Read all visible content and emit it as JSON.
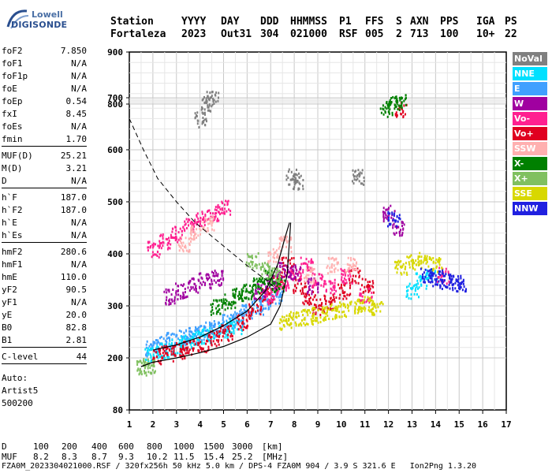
{
  "logo": {
    "line1": "Lowell",
    "line2": "DIGISONDE"
  },
  "header": {
    "labels": [
      "Station",
      "YYYY",
      "DAY",
      "DDD",
      "HHMMSS",
      "P1",
      "FFS",
      "S",
      "AXN",
      "PPS",
      "IGA",
      "PS"
    ],
    "values": [
      "Fortaleza",
      "2023",
      "Out31",
      "304",
      "021000",
      "RSF",
      "005",
      "2",
      "713",
      "100",
      "10+",
      "22"
    ]
  },
  "params": {
    "groups": [
      [
        {
          "label": "foF2",
          "value": "7.850"
        },
        {
          "label": "foF1",
          "value": "N/A"
        },
        {
          "label": "foF1p",
          "value": "N/A"
        },
        {
          "label": "foE",
          "value": "N/A"
        },
        {
          "label": "foEp",
          "value": "0.54"
        },
        {
          "label": "fxI",
          "value": "8.45"
        },
        {
          "label": "foEs",
          "value": "N/A"
        },
        {
          "label": "fmin",
          "value": "1.70"
        }
      ],
      [
        {
          "label": "MUF(D)",
          "value": "25.21"
        },
        {
          "label": "M(D)",
          "value": "3.21"
        },
        {
          "label": "D",
          "value": "N/A"
        }
      ],
      [
        {
          "label": "h`F",
          "value": "187.0"
        },
        {
          "label": "h`F2",
          "value": "187.0"
        },
        {
          "label": "h`E",
          "value": "N/A"
        },
        {
          "label": "h`Es",
          "value": "N/A"
        }
      ],
      [
        {
          "label": "hmF2",
          "value": "280.6"
        },
        {
          "label": "hmF1",
          "value": "N/A"
        },
        {
          "label": "hmE",
          "value": "110.0"
        },
        {
          "label": "yF2",
          "value": "90.5"
        },
        {
          "label": "yF1",
          "value": "N/A"
        },
        {
          "label": "yE",
          "value": "20.0"
        },
        {
          "label": "B0",
          "value": "82.8"
        },
        {
          "label": "B1",
          "value": "2.81"
        }
      ],
      [
        {
          "label": "C-level",
          "value": "44"
        }
      ]
    ],
    "footer": [
      "Auto:",
      "Artist5",
      "500200"
    ]
  },
  "legend": [
    {
      "label": "NoVal",
      "color": "#808080"
    },
    {
      "label": "NNE",
      "color": "#00e0ff"
    },
    {
      "label": "E",
      "color": "#40a0ff"
    },
    {
      "label": "W",
      "color": "#a000a0"
    },
    {
      "label": "Vo-",
      "color": "#ff2090"
    },
    {
      "label": "Vo+",
      "color": "#e00020"
    },
    {
      "label": "SSW",
      "color": "#ffb0b0"
    },
    {
      "label": "X-",
      "color": "#008000"
    },
    {
      "label": "X+",
      "color": "#80c060"
    },
    {
      "label": "SSE",
      "color": "#d8d800"
    },
    {
      "label": "NNW",
      "color": "#2020e0"
    }
  ],
  "chart_data": {
    "type": "scatter",
    "x_ticks": [
      "1",
      "2",
      "3",
      "4",
      "5",
      "6",
      "7",
      "8",
      "9",
      "10",
      "11",
      "12",
      "13",
      "14",
      "15",
      "16",
      "17"
    ],
    "y_ticks": [
      "80",
      "200",
      "300",
      "400",
      "500",
      "600",
      "700",
      "800",
      "900"
    ],
    "xlim": [
      1,
      17
    ],
    "ylim_label_range": [
      80,
      900
    ],
    "grid": true,
    "series": [
      {
        "color": "#40a0ff",
        "points": [
          [
            1.9,
            220
          ],
          [
            2.3,
            228
          ],
          [
            2.8,
            235
          ],
          [
            3.2,
            240
          ],
          [
            3.6,
            245
          ],
          [
            4.0,
            250
          ],
          [
            4.4,
            255
          ],
          [
            4.8,
            262
          ],
          [
            5.2,
            270
          ],
          [
            5.6,
            280
          ],
          [
            6.0,
            292
          ],
          [
            6.4,
            300
          ],
          [
            6.8,
            310
          ],
          [
            7.2,
            320
          ]
        ]
      },
      {
        "color": "#00e0ff",
        "points": [
          [
            1.9,
            210
          ],
          [
            2.4,
            215
          ],
          [
            3.0,
            222
          ],
          [
            3.4,
            230
          ],
          [
            3.9,
            238
          ],
          [
            4.3,
            244
          ],
          [
            5.0,
            255
          ],
          [
            5.5,
            262
          ],
          [
            13.0,
            330
          ],
          [
            13.4,
            350
          ],
          [
            13.8,
            360
          ]
        ]
      },
      {
        "color": "#e00020",
        "points": [
          [
            2.2,
            205
          ],
          [
            2.6,
            210
          ],
          [
            3.1,
            215
          ],
          [
            3.5,
            220
          ],
          [
            4.1,
            228
          ],
          [
            4.6,
            240
          ],
          [
            5.1,
            250
          ],
          [
            5.8,
            270
          ],
          [
            6.3,
            290
          ],
          [
            6.8,
            320
          ],
          [
            7.3,
            350
          ],
          [
            7.7,
            380
          ],
          [
            8.2,
            340
          ],
          [
            8.6,
            320
          ],
          [
            9.0,
            300
          ],
          [
            9.5,
            310
          ],
          [
            10.1,
            330
          ],
          [
            10.5,
            360
          ],
          [
            11.1,
            340
          ],
          [
            12.5,
            680
          ]
        ]
      },
      {
        "color": "#ff2090",
        "points": [
          [
            2.0,
            410
          ],
          [
            2.5,
            425
          ],
          [
            3.0,
            440
          ],
          [
            3.5,
            455
          ],
          [
            4.0,
            470
          ],
          [
            4.5,
            480
          ],
          [
            5.0,
            490
          ],
          [
            7.0,
            320
          ],
          [
            7.5,
            340
          ],
          [
            8.0,
            360
          ],
          [
            8.5,
            380
          ],
          [
            9.0,
            350
          ],
          [
            9.5,
            340
          ],
          [
            10.2,
            360
          ],
          [
            11.0,
            320
          ],
          [
            14.3,
            360
          ]
        ]
      },
      {
        "color": "#a000a0",
        "points": [
          [
            2.7,
            320
          ],
          [
            3.2,
            330
          ],
          [
            3.7,
            340
          ],
          [
            4.2,
            350
          ],
          [
            4.7,
            355
          ],
          [
            6.5,
            330
          ],
          [
            7.0,
            350
          ],
          [
            7.5,
            370
          ],
          [
            8.0,
            365
          ],
          [
            8.8,
            340
          ],
          [
            12.0,
            480
          ],
          [
            12.4,
            450
          ]
        ]
      },
      {
        "color": "#008000",
        "points": [
          [
            4.7,
            300
          ],
          [
            5.2,
            310
          ],
          [
            5.6,
            320
          ],
          [
            6.0,
            330
          ],
          [
            6.4,
            340
          ],
          [
            6.8,
            355
          ],
          [
            7.3,
            340
          ],
          [
            11.9,
            680
          ],
          [
            12.2,
            690
          ],
          [
            12.5,
            720
          ]
        ]
      },
      {
        "color": "#80c060",
        "points": [
          [
            1.5,
            180
          ],
          [
            1.8,
            182
          ],
          [
            6.2,
            390
          ],
          [
            6.7,
            370
          ],
          [
            7.1,
            360
          ]
        ]
      },
      {
        "color": "#d8d800",
        "points": [
          [
            7.6,
            270
          ],
          [
            8.0,
            275
          ],
          [
            8.5,
            280
          ],
          [
            9.0,
            285
          ],
          [
            9.5,
            290
          ],
          [
            10.0,
            295
          ],
          [
            10.5,
            300
          ],
          [
            11.0,
            305
          ],
          [
            11.5,
            300
          ],
          [
            12.5,
            375
          ],
          [
            13.0,
            385
          ],
          [
            13.5,
            390
          ],
          [
            14.0,
            380
          ]
        ]
      },
      {
        "color": "#2020e0",
        "points": [
          [
            12.2,
            470
          ],
          [
            13.6,
            360
          ],
          [
            14.0,
            355
          ],
          [
            14.4,
            350
          ],
          [
            14.8,
            345
          ],
          [
            15.0,
            340
          ]
        ]
      },
      {
        "color": "#ffb0b0",
        "points": [
          [
            3.3,
            420
          ],
          [
            3.8,
            440
          ],
          [
            4.3,
            460
          ],
          [
            7.1,
            400
          ],
          [
            7.6,
            420
          ],
          [
            8.6,
            360
          ],
          [
            9.6,
            380
          ],
          [
            10.4,
            380
          ]
        ]
      },
      {
        "color": "#808080",
        "points": [
          [
            4.0,
            660
          ],
          [
            4.3,
            690
          ],
          [
            4.5,
            710
          ],
          [
            7.9,
            550
          ],
          [
            8.1,
            540
          ],
          [
            10.7,
            550
          ]
        ]
      }
    ]
  },
  "bottom": {
    "d_label": "D",
    "d_values": [
      "100",
      "200",
      "400",
      "600",
      "800",
      "1000",
      "1500",
      "3000",
      "[km]"
    ],
    "muf_label": "MUF",
    "muf_values": [
      "8.2",
      "8.3",
      "8.7",
      "9.3",
      "10.2",
      "11.5",
      "15.4",
      "25.2",
      "[MHz]"
    ],
    "footer_line": "FZA0M_2023304021000.RSF / 320fx256h 50 kHz 5.0 km / DPS-4 FZA0M 904 / 3.9 S 321.6 E   Ion2Png 1.3.20"
  }
}
